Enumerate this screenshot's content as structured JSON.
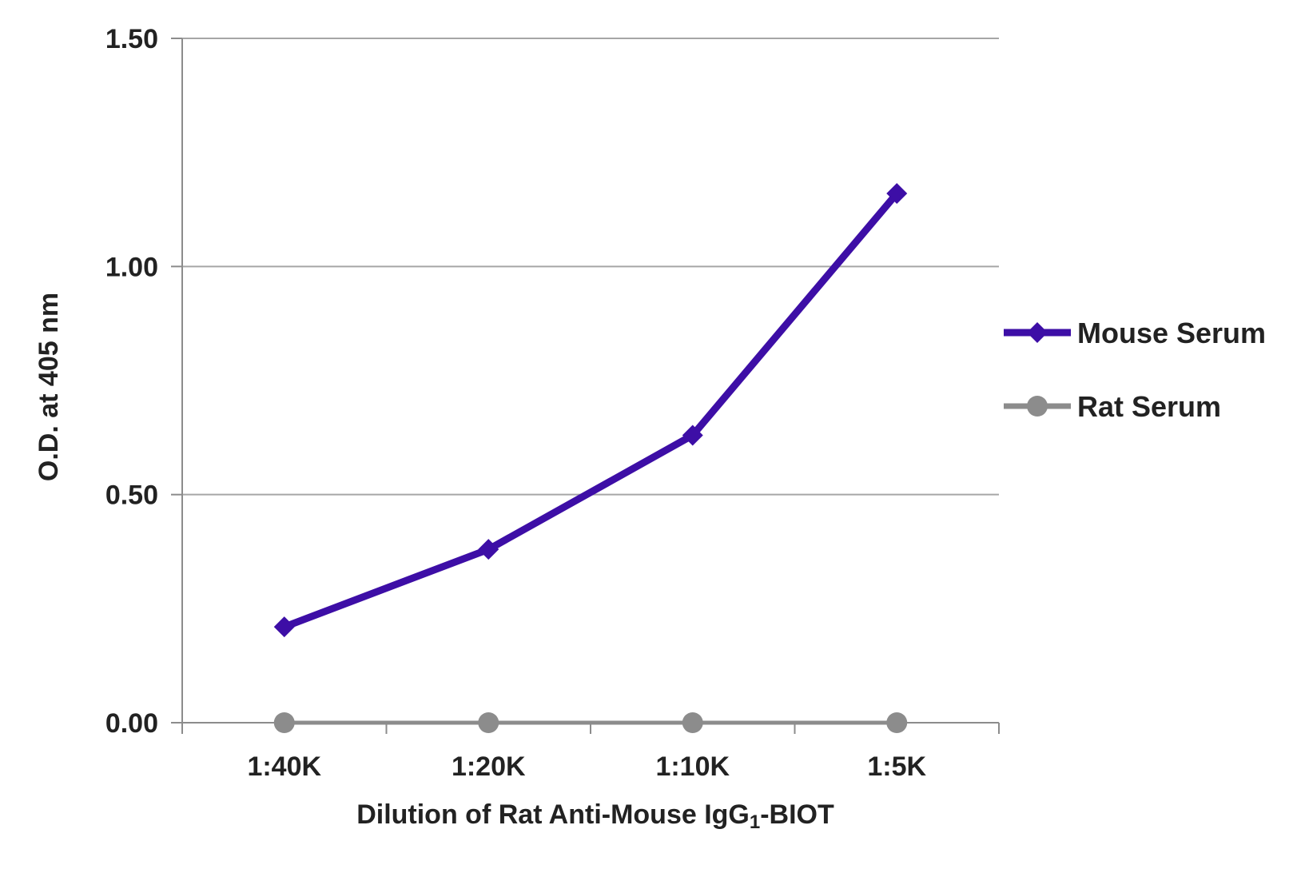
{
  "chart_data": {
    "type": "line",
    "categories": [
      "1:40K",
      "1:20K",
      "1:10K",
      "1:5K"
    ],
    "series": [
      {
        "name": "Mouse Serum",
        "values": [
          0.21,
          0.38,
          0.63,
          1.16
        ],
        "color": "#3d0ea6",
        "marker": "diamond"
      },
      {
        "name": "Rat Serum",
        "values": [
          0.0,
          0.0,
          0.0,
          0.0
        ],
        "color": "#8c8c8c",
        "marker": "circle"
      }
    ],
    "xlabel": "Dilution of Rat Anti-Mouse IgG",
    "xlabel_subscript": "1",
    "xlabel_suffix": "-BIOT",
    "ylabel": "O.D. at 405 nm",
    "ylim": [
      0,
      1.5
    ],
    "yticks": [
      "0.00",
      "0.50",
      "1.00",
      "1.50"
    ],
    "grid": true,
    "legend_position": "right",
    "gridline_color": "#a6a6a6",
    "axis_color": "#8c8c8c"
  }
}
